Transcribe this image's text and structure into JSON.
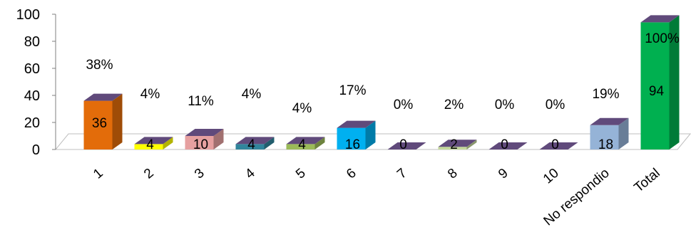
{
  "chart_data": {
    "type": "bar",
    "title": "",
    "xlabel": "",
    "ylabel": "",
    "ylim": [
      0,
      100
    ],
    "yticks": [
      0,
      20,
      40,
      60,
      80,
      100
    ],
    "grid": false,
    "legend": "none",
    "categories": [
      "1",
      "2",
      "3",
      "4",
      "5",
      "6",
      "7",
      "8",
      "9",
      "10",
      "No respondio",
      "Total"
    ],
    "values": [
      36,
      4,
      10,
      4,
      4,
      16,
      0,
      2,
      0,
      0,
      18,
      94
    ],
    "percent_labels": [
      "38%",
      "4%",
      "11%",
      "4%",
      "4%",
      "17%",
      "0%",
      "2%",
      "0%",
      "0%",
      "19%",
      "100%"
    ],
    "colors": [
      "#E36C0A",
      "#FFFF00",
      "#E6A0A0",
      "#31859C",
      "#9BBB59",
      "#00B0F0",
      "#7F7F7F",
      "#C3D69B",
      "#7F7F7F",
      "#7F7F7F",
      "#95B3D7",
      "#00B050"
    ],
    "top_color": "#604A7B",
    "floor_color": "#ffffff"
  }
}
